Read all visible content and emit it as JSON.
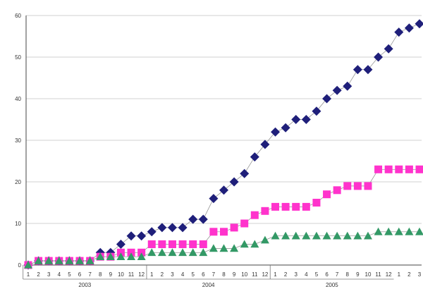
{
  "chart_data": {
    "type": "scatter",
    "title": "",
    "xlabel": "",
    "ylabel": "",
    "ylim": [
      0,
      60
    ],
    "yticks": [
      0,
      10,
      20,
      30,
      40,
      50,
      60
    ],
    "grid": "horizontal",
    "legend": "none",
    "months": [
      "1",
      "2",
      "3",
      "4",
      "5",
      "6",
      "7",
      "8",
      "9",
      "10",
      "11",
      "12",
      "1",
      "2",
      "3",
      "4",
      "5",
      "6",
      "7",
      "8",
      "9",
      "10",
      "11",
      "12",
      "1",
      "2",
      "3",
      "4",
      "5",
      "6",
      "7",
      "8",
      "9",
      "10",
      "11",
      "12",
      "1",
      "2",
      "3"
    ],
    "years": [
      {
        "label": "2003",
        "start": 0,
        "end": 11
      },
      {
        "label": "2004",
        "start": 12,
        "end": 23
      },
      {
        "label": "2005",
        "start": 24,
        "end": 35
      }
    ],
    "series": [
      {
        "marker": "diamond",
        "color": "#1f1f7a",
        "values": [
          0,
          1,
          1,
          1,
          1,
          1,
          1,
          3,
          3,
          5,
          7,
          7,
          8,
          9,
          9,
          9,
          11,
          11,
          16,
          18,
          20,
          22,
          26,
          29,
          32,
          33,
          35,
          35,
          37,
          40,
          42,
          43,
          47,
          47,
          50,
          52,
          56,
          57,
          58
        ]
      },
      {
        "marker": "square",
        "color": "#ff33cc",
        "values": [
          0,
          1,
          1,
          1,
          1,
          1,
          1,
          2,
          2,
          3,
          3,
          3,
          5,
          5,
          5,
          5,
          5,
          5,
          8,
          8,
          9,
          10,
          12,
          13,
          14,
          14,
          14,
          14,
          15,
          17,
          18,
          19,
          19,
          19,
          23,
          23,
          23,
          23,
          23
        ]
      },
      {
        "marker": "triangle",
        "color": "#339966",
        "values": [
          0,
          1,
          1,
          1,
          1,
          1,
          1,
          2,
          2,
          2,
          2,
          2,
          3,
          3,
          3,
          3,
          3,
          3,
          4,
          4,
          4,
          5,
          5,
          6,
          7,
          7,
          7,
          7,
          7,
          7,
          7,
          7,
          7,
          7,
          8,
          8,
          8,
          8,
          8
        ]
      }
    ]
  }
}
